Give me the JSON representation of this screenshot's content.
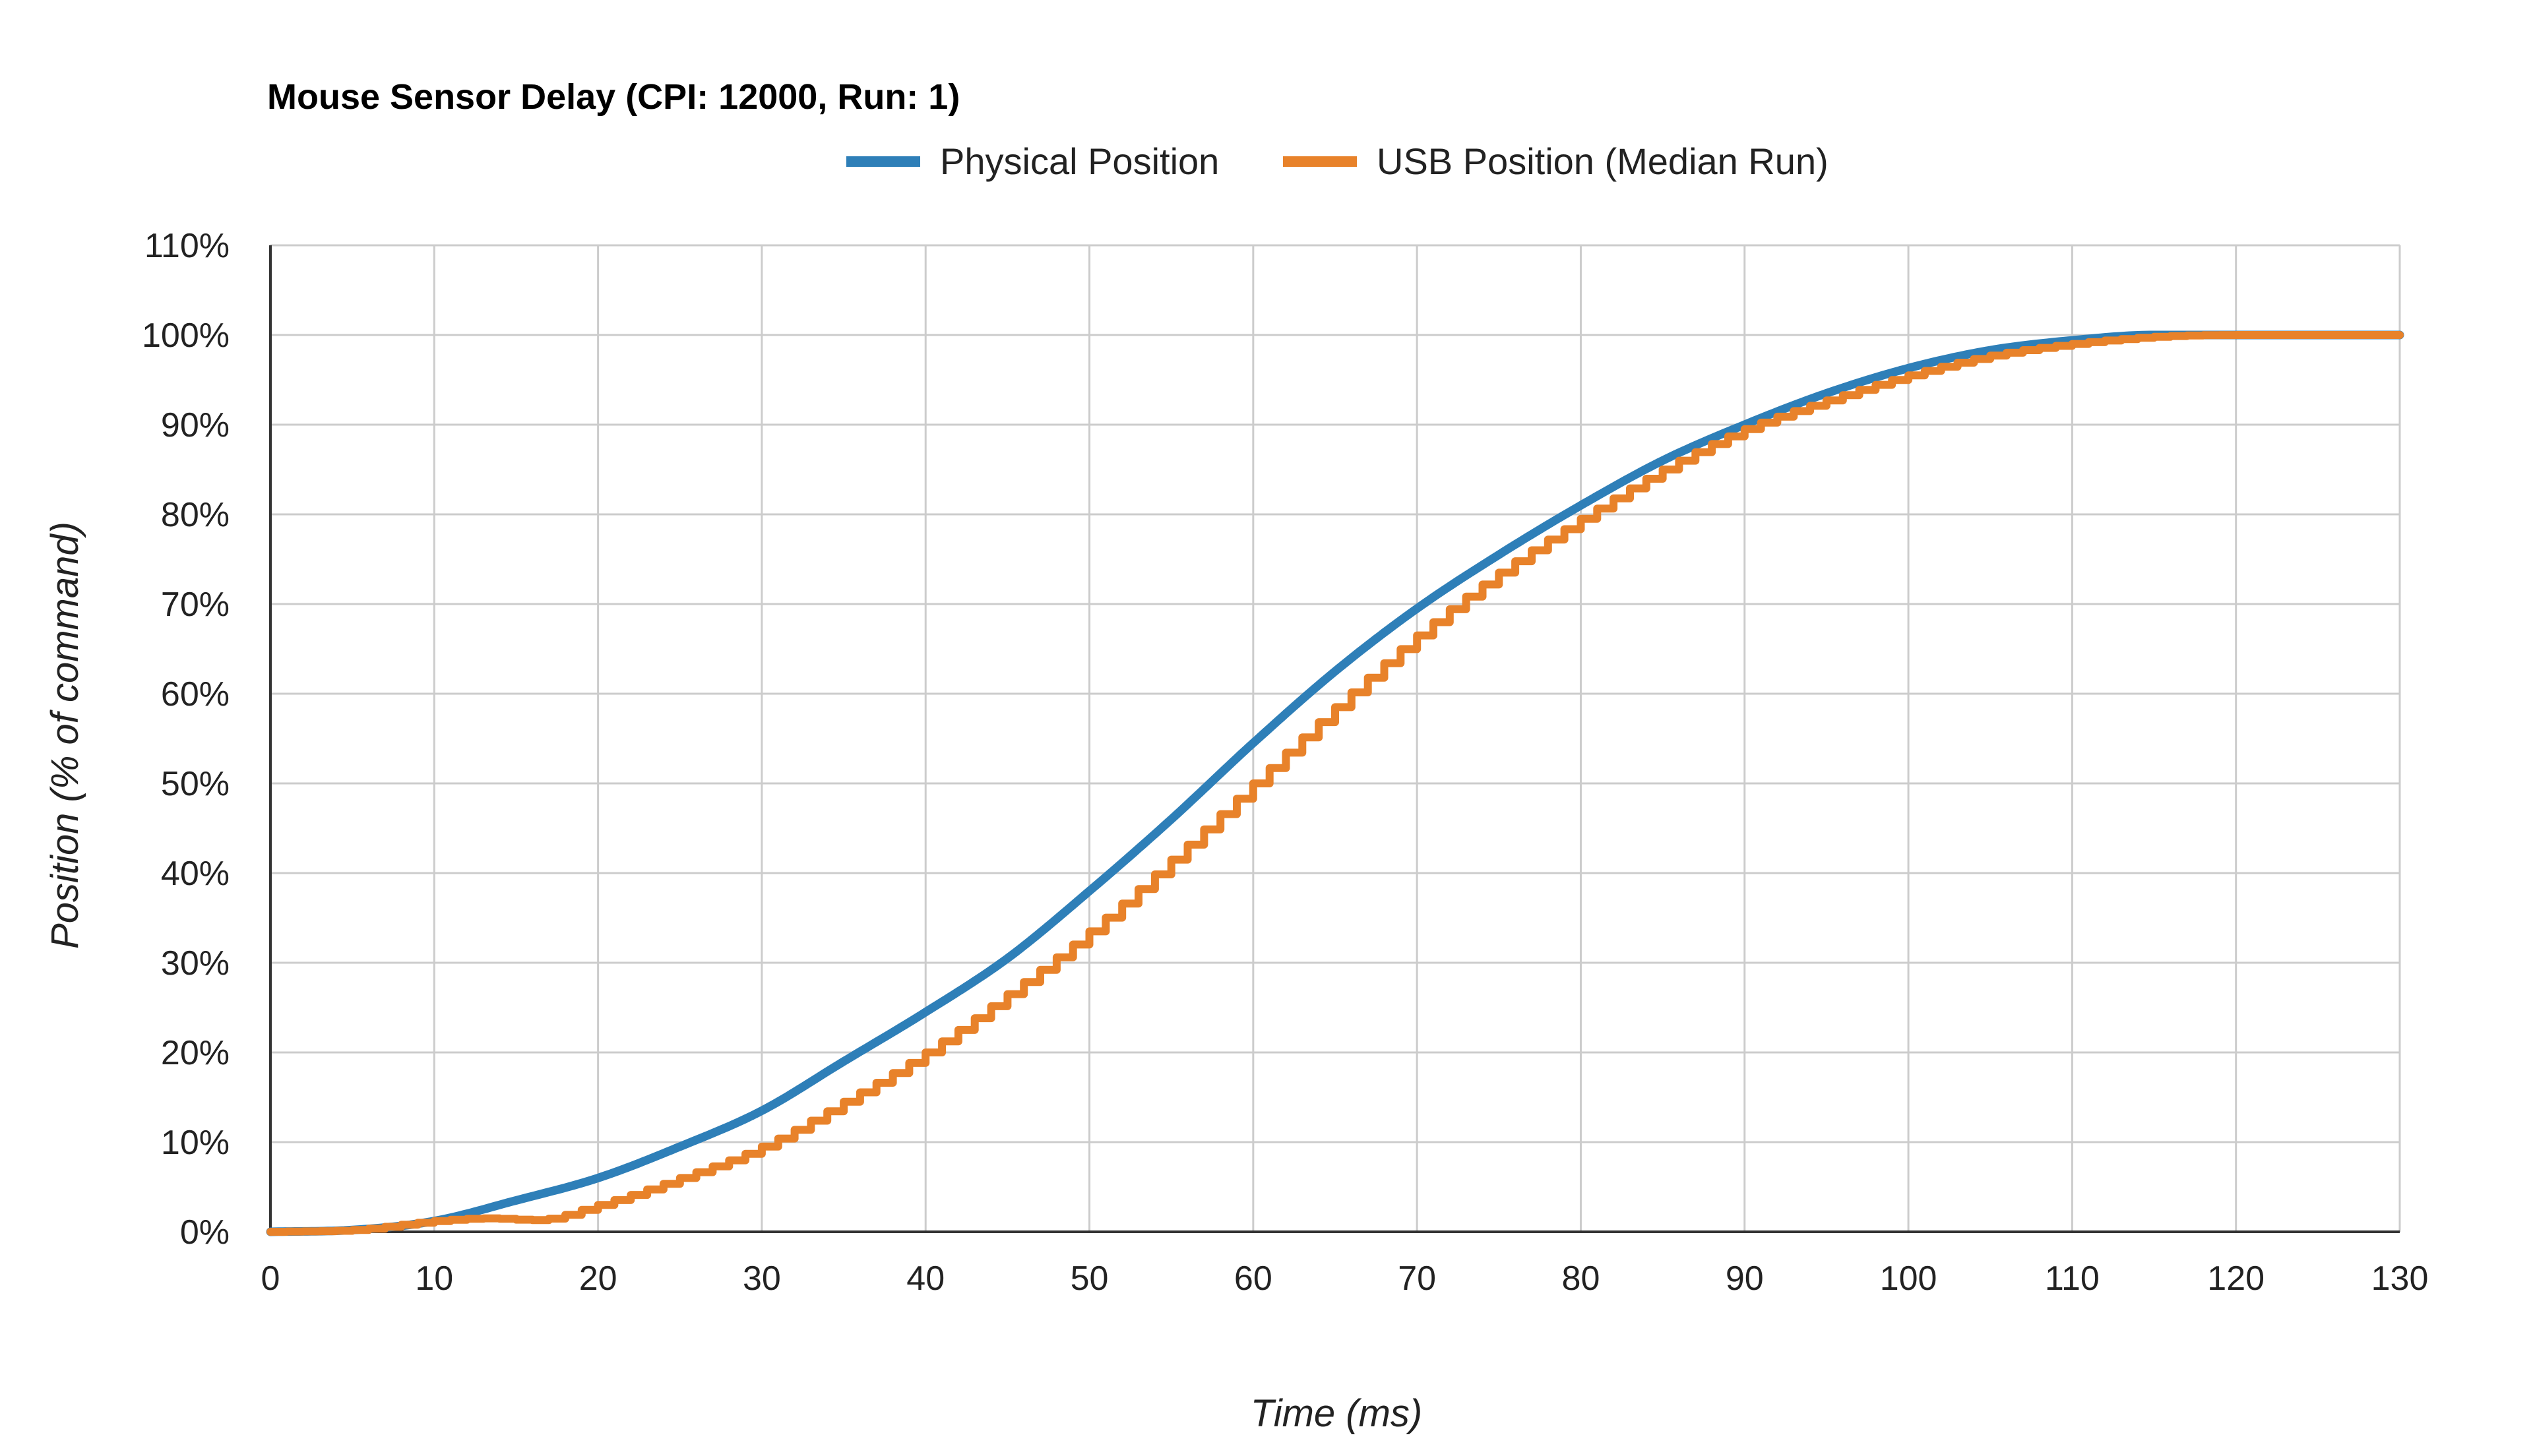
{
  "chart_data": {
    "type": "line",
    "title": "Mouse Sensor Delay (CPI: 12000, Run: 1)",
    "xlabel": "Time (ms)",
    "ylabel": "Position (% of command)",
    "xlim": [
      0,
      130
    ],
    "ylim": [
      0,
      110
    ],
    "x_ticks": [
      0,
      10,
      20,
      30,
      40,
      50,
      60,
      70,
      80,
      90,
      100,
      110,
      120,
      130
    ],
    "y_ticks": [
      0,
      10,
      20,
      30,
      40,
      50,
      60,
      70,
      80,
      90,
      100,
      110
    ],
    "y_tick_labels": [
      "0%",
      "10%",
      "20%",
      "30%",
      "40%",
      "50%",
      "60%",
      "70%",
      "80%",
      "90%",
      "100%",
      "110%"
    ],
    "grid": true,
    "legend_position": "top",
    "colors": {
      "physical": "#2e7fb8",
      "usb": "#e8822a"
    },
    "series": [
      {
        "name": "Physical Position",
        "x": [
          0,
          5,
          10,
          15,
          20,
          25,
          30,
          35,
          40,
          45,
          50,
          55,
          60,
          65,
          70,
          75,
          80,
          85,
          90,
          95,
          100,
          105,
          110,
          115,
          120,
          125,
          130
        ],
        "values": [
          0,
          0.2,
          1.2,
          3.5,
          6,
          9.5,
          13.5,
          19,
          24.5,
          30.5,
          38,
          46,
          54.5,
          62.5,
          69.5,
          75.5,
          81,
          86,
          90,
          93.5,
          96.3,
          98.3,
          99.4,
          100,
          100,
          100,
          100
        ]
      },
      {
        "name": "USB Position (Median Run)",
        "x": [
          0,
          5,
          10,
          13,
          16,
          20,
          25,
          30,
          35,
          40,
          45,
          50,
          55,
          60,
          65,
          70,
          75,
          80,
          85,
          90,
          95,
          100,
          105,
          110,
          115,
          120,
          125,
          130
        ],
        "values": [
          0,
          0.2,
          1.2,
          1.5,
          1.3,
          3,
          6,
          9.5,
          14.5,
          20,
          26.5,
          33.5,
          41.5,
          50,
          58.5,
          66.5,
          73.5,
          79.5,
          85,
          89.5,
          92.7,
          95.5,
          97.7,
          99,
          99.8,
          100,
          100,
          100
        ]
      }
    ]
  }
}
